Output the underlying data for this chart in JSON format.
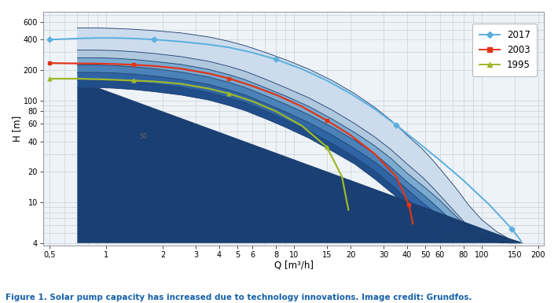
{
  "title": "Figure 1. Solar pump capacity has increased due to technology innovations. Image credit: Grundfos.",
  "xlabel": "Q [m³/h]",
  "ylabel": "H [m]",
  "xticks": [
    0.5,
    1,
    2,
    3,
    4,
    5,
    6,
    8,
    10,
    15,
    20,
    30,
    40,
    50,
    60,
    80,
    100,
    150,
    200
  ],
  "yticks": [
    4,
    10,
    20,
    40,
    60,
    80,
    100,
    200,
    400,
    600
  ],
  "ytick_labels": [
    "4",
    "10",
    "20",
    "40",
    "60",
    "80",
    "100",
    "200",
    "400",
    "600"
  ],
  "xtick_labels": [
    "0,5",
    "1",
    "2",
    "3",
    "4",
    "5",
    "6",
    "8",
    "10",
    "15",
    "20",
    "30",
    "40",
    "50",
    "60",
    "80",
    "100",
    "150",
    "200"
  ],
  "bg_color": "#ffffff",
  "plot_bg": "#eef3f8",
  "grid_color": "#c8d0d8",
  "line_2017_color": "#5aafde",
  "line_2003_color": "#e0341a",
  "line_1995_color": "#9fb82a",
  "caption_color": "#1560a8",
  "color_l1": "#1a3f72",
  "color_l2": "#204e8a",
  "color_l3": "#2f65a5",
  "color_l4": "#4b82b8",
  "color_l5": "#7aaacf",
  "color_l6": "#afc8de",
  "color_l7": "#ccdcec"
}
